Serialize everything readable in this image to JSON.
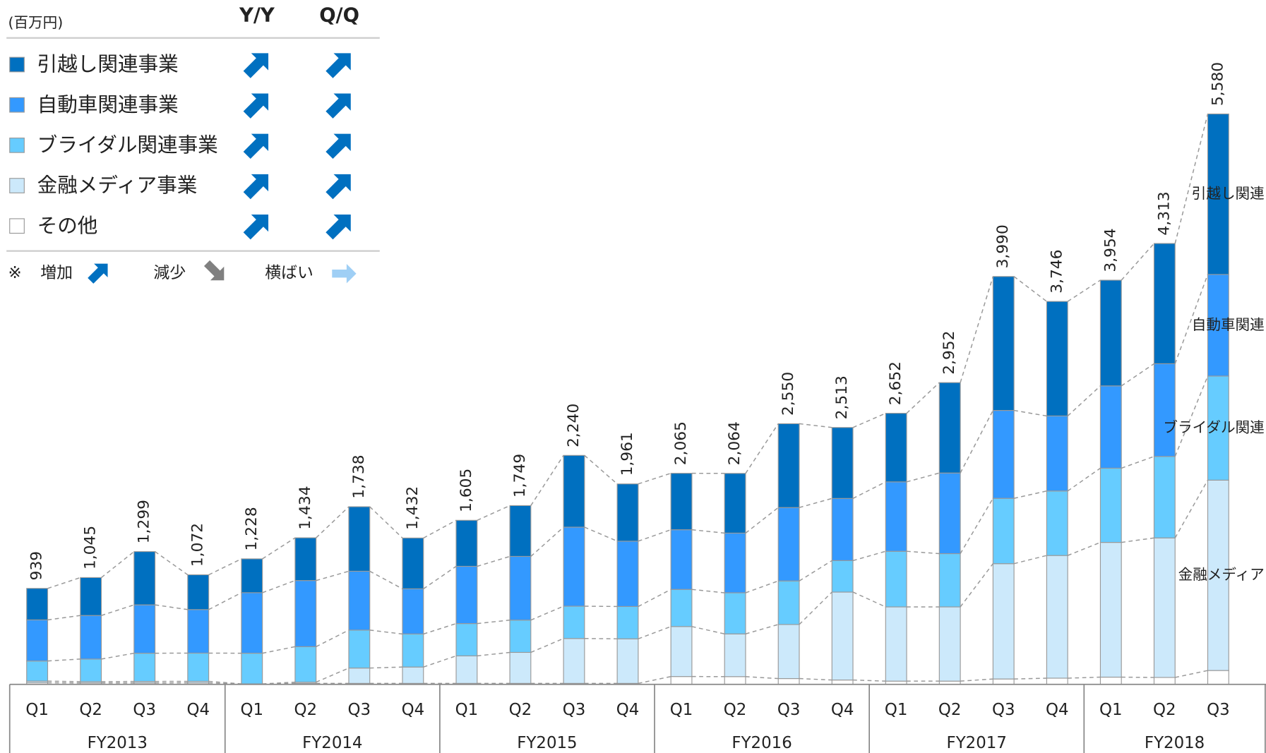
{
  "chart_data": {
    "type": "stacked-bar",
    "unit": "(百万円)",
    "trend_headers": [
      "Y/Y",
      "Q/Q"
    ],
    "legend_key": {
      "mark": "※",
      "up": "増加",
      "down": "減少",
      "flat": "横ばい"
    },
    "groups": [
      {
        "name": "FY2013",
        "categories": [
          "Q1",
          "Q2",
          "Q3",
          "Q4"
        ]
      },
      {
        "name": "FY2014",
        "categories": [
          "Q1",
          "Q2",
          "Q3",
          "Q4"
        ]
      },
      {
        "name": "FY2015",
        "categories": [
          "Q1",
          "Q2",
          "Q3",
          "Q4"
        ]
      },
      {
        "name": "FY2016",
        "categories": [
          "Q1",
          "Q2",
          "Q3",
          "Q4"
        ]
      },
      {
        "name": "FY2017",
        "categories": [
          "Q1",
          "Q2",
          "Q3",
          "Q4"
        ]
      },
      {
        "name": "FY2018",
        "categories": [
          "Q1",
          "Q2",
          "Q3"
        ]
      }
    ],
    "ylim": [
      0,
      6000
    ],
    "totals": [
      939,
      1045,
      1299,
      1072,
      1228,
      1434,
      1738,
      1432,
      1605,
      1749,
      2240,
      1961,
      2065,
      2064,
      2550,
      2513,
      2652,
      2952,
      3990,
      3746,
      3954,
      4313,
      5580
    ],
    "total_labels": [
      "939",
      "1,045",
      "1,299",
      "1,072",
      "1,228",
      "1,434",
      "1,738",
      "1,432",
      "1,605",
      "1,749",
      "2,240",
      "1,961",
      "2,065",
      "2,064",
      "2,550",
      "2,513",
      "2,652",
      "2,952",
      "3,990",
      "3,746",
      "3,954",
      "4,313",
      "5,580"
    ],
    "series": [
      {
        "name": "引越し関連事業",
        "short_name": "引越し関連",
        "color": "#0070c0",
        "yoy": "up",
        "qoq": "up",
        "values": [
          308,
          371,
          521,
          340,
          331,
          418,
          631,
          497,
          450,
          497,
          702,
          560,
          552,
          584,
          820,
          694,
          671,
          884,
          1310,
          1120,
          1034,
          1176,
          1570
        ]
      },
      {
        "name": "自動車関連事業",
        "short_name": "自動車関連",
        "color": "#3399ff",
        "yoy": "up",
        "qoq": "up",
        "values": [
          402,
          426,
          473,
          426,
          592,
          647,
          576,
          442,
          560,
          623,
          773,
          639,
          584,
          584,
          718,
          608,
          679,
          789,
          860,
          734,
          805,
          907,
          994
        ]
      },
      {
        "name": "ブライダル関連事業",
        "short_name": "ブライダル関連",
        "color": "#66ccff",
        "yoy": "up",
        "qoq": "up",
        "values": [
          197,
          221,
          276,
          276,
          300,
          347,
          371,
          323,
          316,
          316,
          316,
          316,
          363,
          402,
          426,
          308,
          544,
          521,
          639,
          631,
          726,
          797,
          1018
        ]
      },
      {
        "name": "金融メディア事業",
        "short_name": "金融メディア",
        "color": "#cce9fb",
        "yoy": "up",
        "qoq": "up",
        "values": [
          16,
          13,
          15,
          15,
          3,
          12,
          150,
          160,
          269,
          303,
          439,
          436,
          489,
          418,
          529,
          860,
          726,
          726,
          1128,
          1200,
          1318,
          1365,
          1862
        ]
      },
      {
        "name": "その他",
        "color": "#ffffff",
        "yoy": "up",
        "qoq": "up",
        "values": [
          16,
          14,
          14,
          15,
          2,
          10,
          10,
          10,
          10,
          10,
          10,
          10,
          77,
          76,
          57,
          43,
          32,
          32,
          53,
          61,
          71,
          68,
          136
        ]
      }
    ]
  }
}
